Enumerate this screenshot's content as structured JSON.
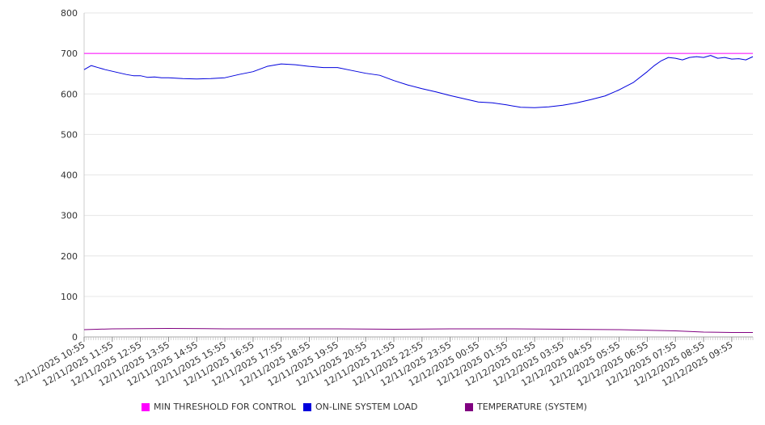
{
  "chart_data": {
    "type": "line",
    "ylim": [
      0,
      800
    ],
    "yticks": [
      0,
      100,
      200,
      300,
      400,
      500,
      600,
      700,
      800
    ],
    "grid": true,
    "legend_position": "bottom",
    "x_start": "12/11/2025 10:55",
    "x_end": "12/12/2025 10:40",
    "x_tick_labels": [
      "12/11/2025 10:55",
      "12/11/2025 11:55",
      "12/11/2025 12:55",
      "12/11/2025 13:55",
      "12/11/2025 14:55",
      "12/11/2025 15:55",
      "12/11/2025 16:55",
      "12/11/2025 17:55",
      "12/11/2025 18:55",
      "12/11/2025 19:55",
      "12/11/2025 20:55",
      "12/11/2025 21:55",
      "12/11/2025 22:55",
      "12/11/2025 23:55",
      "12/12/2025 00:55",
      "12/12/2025 01:55",
      "12/12/2025 02:55",
      "12/12/2025 03:55",
      "12/12/2025 04:55",
      "12/12/2025 05:55",
      "12/12/2025 06:55",
      "12/12/2025 07:55",
      "12/12/2025 08:55",
      "12/12/2025 09:55"
    ],
    "series": [
      {
        "name": "MIN THRESHOLD FOR CONTROL",
        "color": "#ff00ff",
        "x": [
          "12/11/2025 10:55",
          "12/12/2025 10:40"
        ],
        "values": [
          700,
          700
        ]
      },
      {
        "name": "ON-LINE SYSTEM LOAD",
        "color": "#0000dd",
        "x": [
          "12/11/2025 10:55",
          "12/11/2025 11:10",
          "12/11/2025 11:25",
          "12/11/2025 11:40",
          "12/11/2025 11:55",
          "12/11/2025 12:10",
          "12/11/2025 12:25",
          "12/11/2025 12:40",
          "12/11/2025 12:55",
          "12/11/2025 13:10",
          "12/11/2025 13:25",
          "12/11/2025 13:40",
          "12/11/2025 13:55",
          "12/11/2025 14:25",
          "12/11/2025 14:55",
          "12/11/2025 15:25",
          "12/11/2025 15:55",
          "12/11/2025 16:25",
          "12/11/2025 16:55",
          "12/11/2025 17:25",
          "12/11/2025 17:55",
          "12/11/2025 18:25",
          "12/11/2025 18:55",
          "12/11/2025 19:25",
          "12/11/2025 19:55",
          "12/11/2025 20:25",
          "12/11/2025 20:55",
          "12/11/2025 21:25",
          "12/11/2025 21:55",
          "12/11/2025 22:25",
          "12/11/2025 22:55",
          "12/11/2025 23:25",
          "12/11/2025 23:55",
          "12/12/2025 00:25",
          "12/12/2025 00:55",
          "12/12/2025 01:25",
          "12/12/2025 01:55",
          "12/12/2025 02:25",
          "12/12/2025 02:55",
          "12/12/2025 03:25",
          "12/12/2025 03:55",
          "12/12/2025 04:25",
          "12/12/2025 04:55",
          "12/12/2025 05:25",
          "12/12/2025 05:55",
          "12/12/2025 06:25",
          "12/12/2025 06:55",
          "12/12/2025 07:10",
          "12/12/2025 07:25",
          "12/12/2025 07:40",
          "12/12/2025 07:55",
          "12/12/2025 08:10",
          "12/12/2025 08:25",
          "12/12/2025 08:40",
          "12/12/2025 08:55",
          "12/12/2025 09:10",
          "12/12/2025 09:25",
          "12/12/2025 09:40",
          "12/12/2025 09:55",
          "12/12/2025 10:10",
          "12/12/2025 10:25",
          "12/12/2025 10:40"
        ],
        "values": [
          660,
          670,
          665,
          660,
          656,
          652,
          648,
          645,
          645,
          641,
          642,
          640,
          640,
          638,
          637,
          638,
          640,
          648,
          655,
          668,
          674,
          672,
          668,
          665,
          665,
          658,
          651,
          646,
          633,
          622,
          613,
          605,
          596,
          588,
          580,
          578,
          573,
          567,
          566,
          568,
          572,
          578,
          586,
          595,
          610,
          628,
          655,
          670,
          682,
          690,
          688,
          684,
          690,
          692,
          690,
          695,
          688,
          690,
          686,
          687,
          684,
          692
        ]
      },
      {
        "name": "TEMPERATURE (SYSTEM)",
        "color": "#800080",
        "x": [
          "12/11/2025 10:55",
          "12/11/2025 11:55",
          "12/11/2025 13:55",
          "12/11/2025 15:55",
          "12/11/2025 17:55",
          "12/11/2025 19:55",
          "12/11/2025 21:55",
          "12/11/2025 23:55",
          "12/12/2025 01:55",
          "12/12/2025 03:55",
          "12/12/2025 05:55",
          "12/12/2025 07:55",
          "12/12/2025 08:55",
          "12/12/2025 09:55",
          "12/12/2025 10:40"
        ],
        "values": [
          18,
          20,
          21,
          20,
          20,
          20,
          19,
          20,
          20,
          19,
          18,
          15,
          12,
          11,
          11
        ]
      }
    ]
  }
}
